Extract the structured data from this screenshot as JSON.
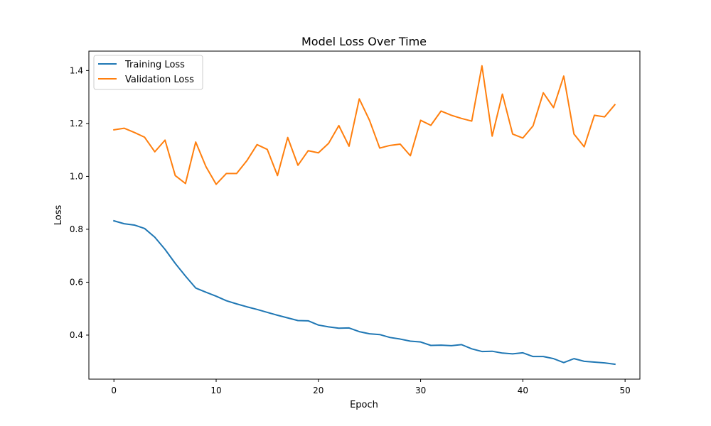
{
  "chart_data": {
    "type": "line",
    "title": "Model Loss Over Time",
    "xlabel": "Epoch",
    "ylabel": "Loss",
    "xlim": [
      -2.45,
      51.45
    ],
    "ylim": [
      0.2335,
      1.4735
    ],
    "xticks": [
      0,
      10,
      20,
      30,
      40,
      50
    ],
    "yticks": [
      0.4,
      0.6,
      0.8,
      1.0,
      1.2,
      1.4
    ],
    "ytick_labels": [
      "0.4",
      "0.6",
      "0.8",
      "1.0",
      "1.2",
      "1.4"
    ],
    "grid": false,
    "legend_position": "top-left",
    "x": [
      0,
      1,
      2,
      3,
      4,
      5,
      6,
      7,
      8,
      9,
      10,
      11,
      12,
      13,
      14,
      15,
      16,
      17,
      18,
      19,
      20,
      21,
      22,
      23,
      24,
      25,
      26,
      27,
      28,
      29,
      30,
      31,
      32,
      33,
      34,
      35,
      36,
      37,
      38,
      39,
      40,
      41,
      42,
      43,
      44,
      45,
      46,
      47,
      48,
      49
    ],
    "series": [
      {
        "name": "Training Loss",
        "color": "#1f77b4",
        "values": [
          0.832,
          0.821,
          0.816,
          0.803,
          0.77,
          0.724,
          0.671,
          0.623,
          0.578,
          0.562,
          0.547,
          0.53,
          0.518,
          0.507,
          0.497,
          0.486,
          0.475,
          0.465,
          0.455,
          0.454,
          0.438,
          0.431,
          0.426,
          0.427,
          0.413,
          0.405,
          0.402,
          0.391,
          0.385,
          0.377,
          0.374,
          0.361,
          0.362,
          0.36,
          0.364,
          0.348,
          0.338,
          0.339,
          0.332,
          0.329,
          0.333,
          0.319,
          0.319,
          0.311,
          0.296,
          0.311,
          0.301,
          0.298,
          0.295,
          0.29
        ]
      },
      {
        "name": "Validation Loss",
        "color": "#ff7f0e",
        "values": [
          1.176,
          1.182,
          1.166,
          1.148,
          1.093,
          1.137,
          1.003,
          0.973,
          1.13,
          1.037,
          0.97,
          1.011,
          1.011,
          1.059,
          1.12,
          1.102,
          1.003,
          1.147,
          1.042,
          1.097,
          1.089,
          1.125,
          1.192,
          1.114,
          1.293,
          1.212,
          1.107,
          1.117,
          1.122,
          1.078,
          1.212,
          1.193,
          1.247,
          1.231,
          1.219,
          1.209,
          1.418,
          1.152,
          1.311,
          1.16,
          1.145,
          1.191,
          1.316,
          1.26,
          1.379,
          1.16,
          1.112,
          1.231,
          1.225,
          1.271
        ]
      }
    ]
  }
}
